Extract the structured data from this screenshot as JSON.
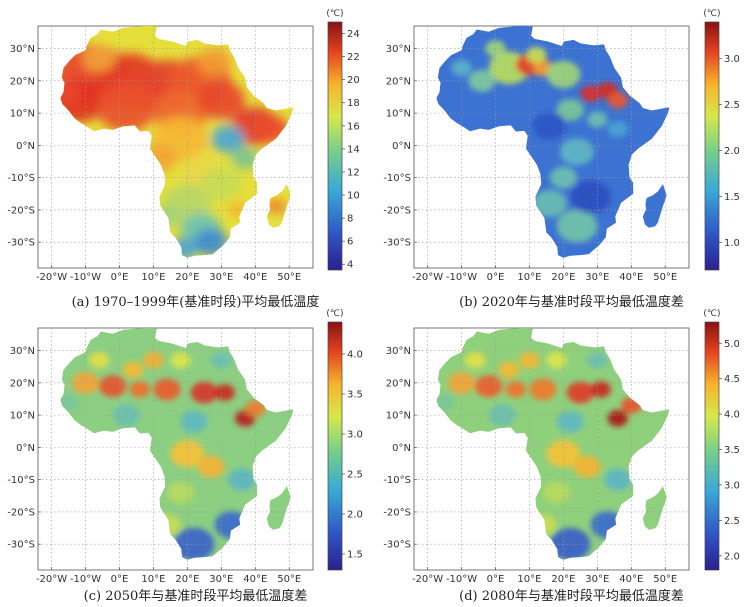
{
  "panels": [
    {
      "caption": "(a) 1970–1999年(基准时段)平均最低温度",
      "unit": "(℃)",
      "ticks": [
        "24",
        "22",
        "20",
        "18",
        "16",
        "14",
        "12",
        "10",
        "8",
        "6",
        "4"
      ],
      "colorbar": {
        "min": 3.5,
        "max": 25.0,
        "tick_values": [
          24,
          22,
          20,
          18,
          16,
          14,
          12,
          10,
          8,
          6,
          4
        ]
      }
    },
    {
      "caption": "(b) 2020年与基准时段平均最低温度差",
      "unit": "(℃)",
      "ticks": [
        "3.0",
        "2.5",
        "2.0",
        "1.5",
        "1.0"
      ],
      "colorbar": {
        "min": 0.7,
        "max": 3.4,
        "tick_values": [
          3.0,
          2.5,
          2.0,
          1.5,
          1.0
        ]
      }
    },
    {
      "caption": "(c) 2050年与基准时段平均最低温度差",
      "unit": "(℃)",
      "ticks": [
        "4.0",
        "3.5",
        "3.0",
        "2.5",
        "2.0",
        "1.5"
      ],
      "colorbar": {
        "min": 1.3,
        "max": 4.4,
        "tick_values": [
          4.0,
          3.5,
          3.0,
          2.5,
          2.0,
          1.5
        ]
      }
    },
    {
      "caption": "(d) 2080年与基准时段平均最低温度差",
      "unit": "(℃)",
      "ticks": [
        "5.0",
        "4.5",
        "4.0",
        "3.5",
        "3.0",
        "2.5",
        "2.0"
      ],
      "colorbar": {
        "min": 1.8,
        "max": 5.3,
        "tick_values": [
          5.0,
          4.5,
          4.0,
          3.5,
          3.0,
          2.5,
          2.0
        ]
      }
    }
  ],
  "lat_labels": [
    "30°N",
    "20°N",
    "10°N",
    "0°N",
    "-10°S",
    "-20°S",
    "-30°S"
  ],
  "lon_labels": [
    "-20°W",
    "-10°W",
    "0°E",
    "10°E",
    "20°E",
    "30°E",
    "40°E",
    "50°E"
  ],
  "map_extent": {
    "lon": [
      -24,
      57
    ],
    "lat": [
      -38,
      37
    ]
  }
}
